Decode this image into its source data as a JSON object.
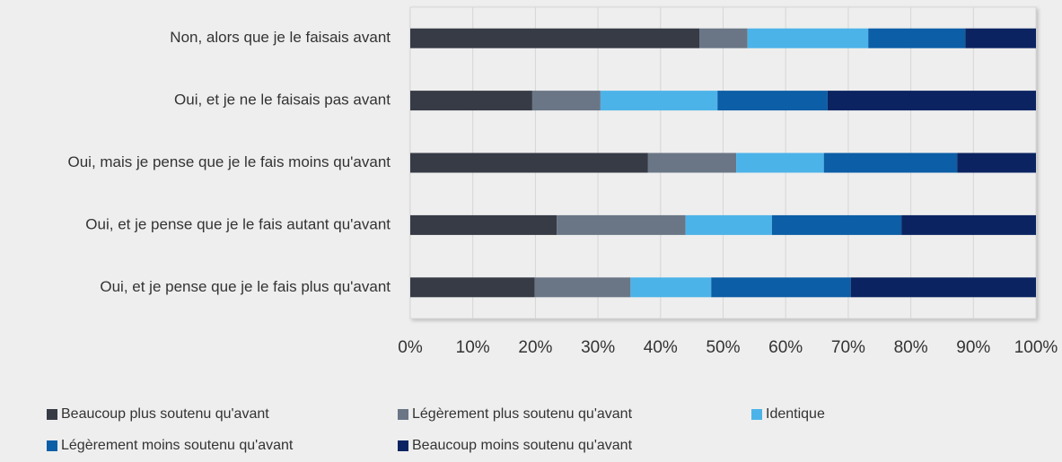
{
  "chart_data": {
    "type": "stacked-barh",
    "categories": [
      "Non, alors que je le faisais avant",
      "Oui, et je ne le faisais pas avant",
      "Oui, mais je pense que je le fais moins qu'avant",
      "Oui, et je pense que je le fais autant qu'avant",
      "Oui, et je pense que je le fais plus qu'avant"
    ],
    "series": [
      {
        "name": "Beaucoup plus soutenu qu'avant",
        "color": "#363b46",
        "values": [
          46.2,
          19.5,
          38.0,
          23.4,
          19.9
        ]
      },
      {
        "name": "Légèrement plus soutenu qu'avant",
        "color": "#6a7686",
        "values": [
          7.7,
          10.9,
          14.1,
          20.6,
          15.3
        ]
      },
      {
        "name": "Identique",
        "color": "#4cb3e8",
        "values": [
          19.3,
          18.7,
          14.0,
          13.8,
          12.9
        ]
      },
      {
        "name": "Légèrement moins soutenu qu'avant",
        "color": "#0c5ea6",
        "values": [
          15.5,
          17.6,
          21.3,
          20.7,
          22.3
        ]
      },
      {
        "name": "Beaucoup moins soutenu qu'avant",
        "color": "#0b2461",
        "values": [
          11.3,
          33.3,
          12.6,
          21.5,
          29.6
        ]
      }
    ],
    "xlim": [
      0,
      100
    ],
    "xticks": [
      {
        "value": 0,
        "label": "0%"
      },
      {
        "value": 10,
        "label": "10%"
      },
      {
        "value": 20,
        "label": "20%"
      },
      {
        "value": 30,
        "label": "30%"
      },
      {
        "value": 40,
        "label": "40%"
      },
      {
        "value": 50,
        "label": "50%"
      },
      {
        "value": 60,
        "label": "60%"
      },
      {
        "value": 70,
        "label": "70%"
      },
      {
        "value": 80,
        "label": "80%"
      },
      {
        "value": 90,
        "label": "90%"
      },
      {
        "value": 100,
        "label": "100%"
      }
    ],
    "grid": true
  }
}
